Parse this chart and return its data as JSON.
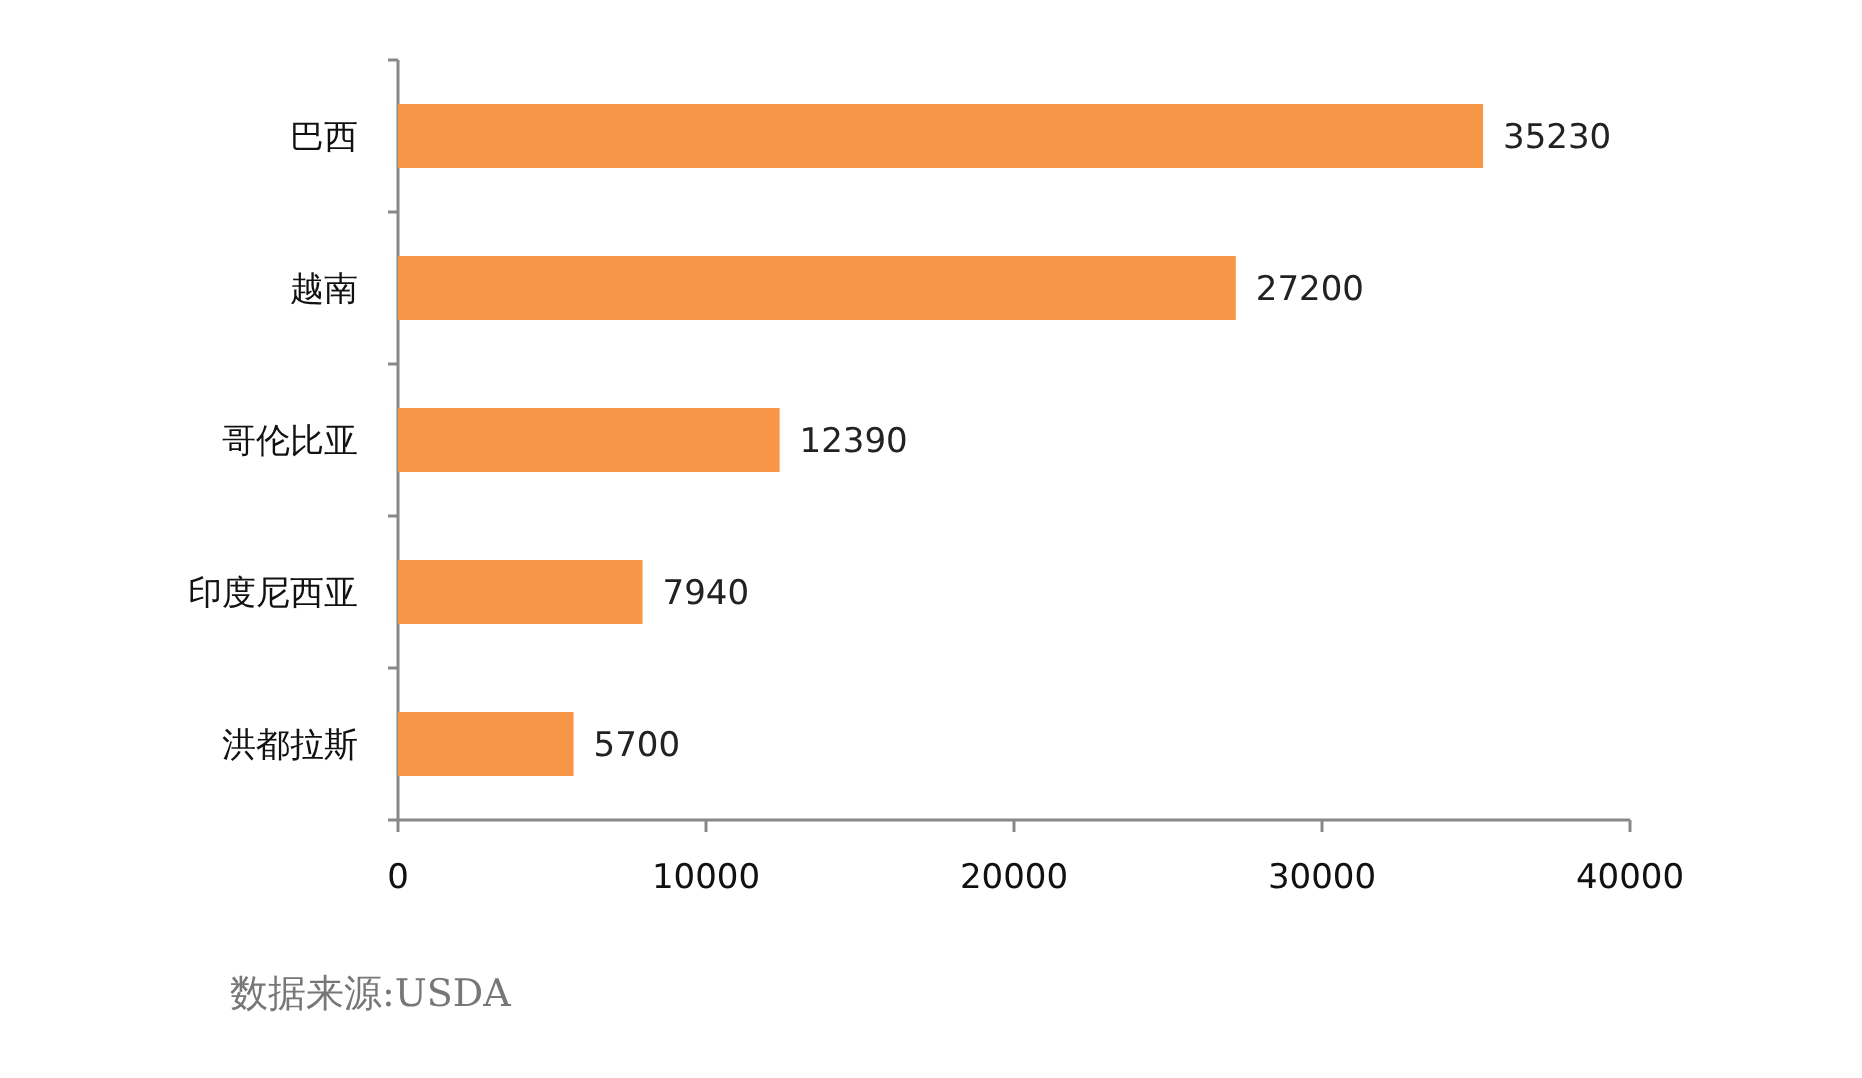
{
  "chart_data": {
    "type": "bar",
    "orientation": "horizontal",
    "categories": [
      "巴西",
      "越南",
      "哥伦比亚",
      "印度尼西亚",
      "洪都拉斯"
    ],
    "values": [
      35230,
      27200,
      12390,
      7940,
      5700
    ],
    "color": "#f79646",
    "xlim": [
      0,
      40000
    ],
    "xticks": [
      0,
      10000,
      20000,
      30000,
      40000
    ],
    "data_labels": true,
    "grid": false,
    "annotations": [
      "数据来源:USDA"
    ]
  }
}
